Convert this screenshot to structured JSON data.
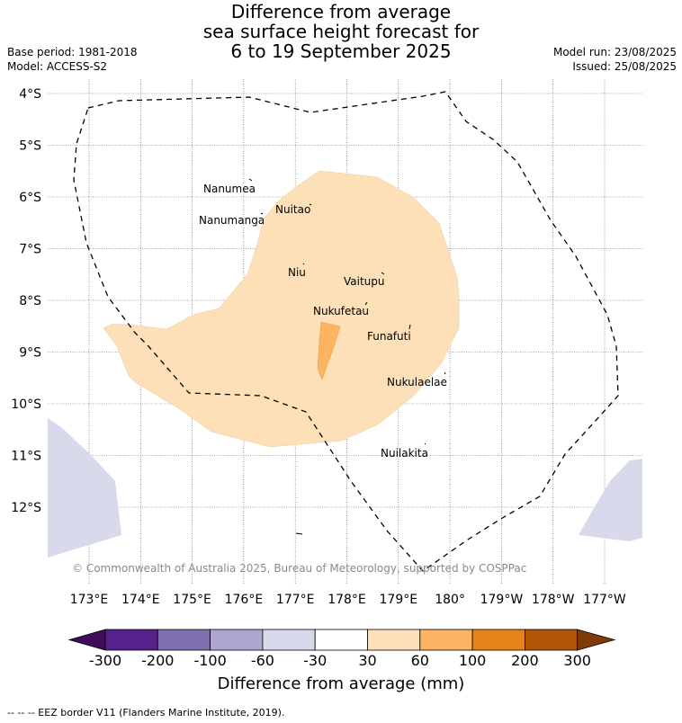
{
  "title": {
    "line1": "Difference from average",
    "line2": "sea surface height forecast for",
    "line3": "6 to 19 September 2025"
  },
  "meta": {
    "base_period": "Base period: 1981-2018",
    "model": "Model: ACCESS-S2",
    "model_run": "Model run: 23/08/2025",
    "issued": "Issued: 25/08/2025"
  },
  "map": {
    "lat_labels": [
      "4°S",
      "5°S",
      "6°S",
      "7°S",
      "8°S",
      "9°S",
      "10°S",
      "11°S",
      "12°S"
    ],
    "lon_labels": [
      "173°E",
      "174°E",
      "175°E",
      "176°E",
      "177°E",
      "178°E",
      "179°E",
      "180°",
      "179°W",
      "178°W",
      "177°W"
    ],
    "places": [
      "Nanumea",
      "Nanumanga",
      "Nuitao",
      "Niu",
      "Vaitupu",
      "Nukufetau",
      "Funafuti",
      "Nukulaelae",
      "Nuilakita"
    ],
    "copyright": "© Commonwealth of Australia 2025, Bureau of Meteorology, supported by COSPPac",
    "colors": {
      "anomaly_30_60": "#fde0b8",
      "anomaly_60_100": "#fdb462",
      "anomaly_neg_60_30": "#d8d9ea"
    }
  },
  "colorbar": {
    "title": "Difference from average (mm)",
    "ticks": [
      "-300",
      "-200",
      "-100",
      "-60",
      "-30",
      "30",
      "60",
      "100",
      "200",
      "300"
    ],
    "colors": [
      "#3f0d59",
      "#54228a",
      "#7e6fae",
      "#ada7cf",
      "#d8d9ea",
      "#ffffff",
      "#fde0b8",
      "#fdb462",
      "#e6841b",
      "#b35506",
      "#7f3b08"
    ]
  },
  "footer": {
    "eez_note": "--  --  -- EEZ border V11 (Flanders Marine Institute, 2019)."
  }
}
